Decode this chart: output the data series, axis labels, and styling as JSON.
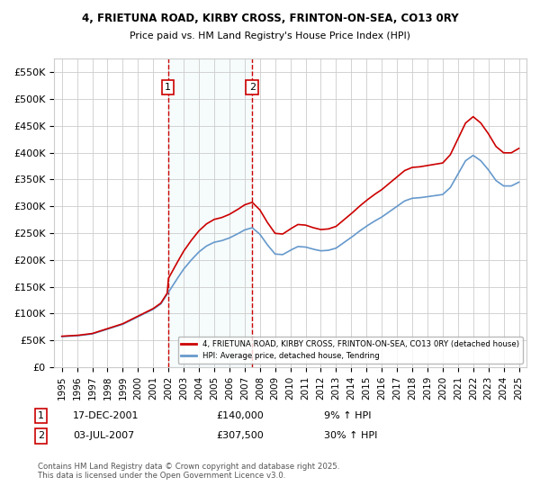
{
  "title_line1": "4, FRIETUNA ROAD, KIRBY CROSS, FRINTON-ON-SEA, CO13 0RY",
  "title_line2": "Price paid vs. HM Land Registry's House Price Index (HPI)",
  "ylabel_ticks": [
    "£0",
    "£50K",
    "£100K",
    "£150K",
    "£200K",
    "£250K",
    "£300K",
    "£350K",
    "£400K",
    "£450K",
    "£500K",
    "£550K"
  ],
  "ytick_values": [
    0,
    50000,
    100000,
    150000,
    200000,
    250000,
    300000,
    350000,
    400000,
    450000,
    500000,
    550000
  ],
  "ylim": [
    0,
    575000
  ],
  "xlim_start": 1994.5,
  "xlim_end": 2025.5,
  "background_color": "#ffffff",
  "grid_color": "#cccccc",
  "purchase1_x": 2001.96,
  "purchase1_price": 140000,
  "purchase2_x": 2007.5,
  "purchase2_price": 307500,
  "sale_marker_color": "#cc0000",
  "hpi_color": "#6699cc",
  "legend_label_red": "4, FRIETUNA ROAD, KIRBY CROSS, FRINTON-ON-SEA, CO13 0RY (detached house)",
  "legend_label_blue": "HPI: Average price, detached house, Tendring",
  "annotation1_date": "17-DEC-2001",
  "annotation1_price": "£140,000",
  "annotation1_hpi": "9% ↑ HPI",
  "annotation2_date": "03-JUL-2007",
  "annotation2_price": "£307,500",
  "annotation2_hpi": "30% ↑ HPI",
  "footer": "Contains HM Land Registry data © Crown copyright and database right 2025.\nThis data is licensed under the Open Government Licence v3.0."
}
